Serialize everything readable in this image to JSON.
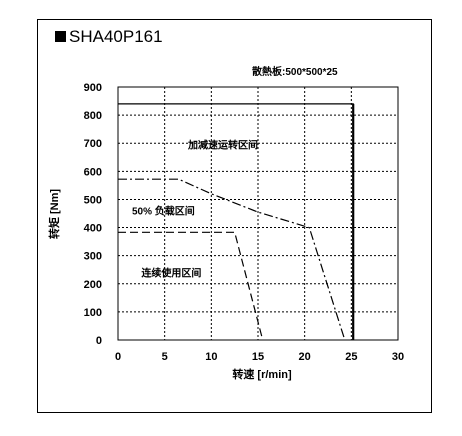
{
  "chart_data": {
    "type": "line",
    "title": "SHA40P161",
    "subtitle": "散熱板:500*500*25",
    "xlabel": "转速 [r/min]",
    "ylabel": "转矩 [Nm]",
    "xlim": [
      0,
      30
    ],
    "ylim": [
      0,
      900
    ],
    "xticks": [
      0,
      5,
      10,
      15,
      20,
      25,
      30
    ],
    "yticks": [
      0,
      100,
      200,
      300,
      400,
      500,
      600,
      700,
      800,
      900
    ],
    "grid": true,
    "series": [
      {
        "style": "solid",
        "x": [
          0,
          25.2,
          25.2
        ],
        "y": [
          840,
          840,
          0
        ]
      },
      {
        "style": "dash-dot",
        "x": [
          0,
          6.5,
          10,
          15,
          20.5,
          24.3
        ],
        "y": [
          572,
          572,
          520,
          455,
          400,
          0
        ]
      },
      {
        "style": "dashed",
        "x": [
          0,
          12.5,
          15.5
        ],
        "y": [
          383,
          383,
          0
        ]
      }
    ],
    "annotations": [
      {
        "text": "加减速运转区间",
        "x": 7.5,
        "y": 695
      },
      {
        "text": "50% 负载区间",
        "x": 1.5,
        "y": 460
      },
      {
        "text": "连续使用区间",
        "x": 2.5,
        "y": 240
      }
    ]
  }
}
